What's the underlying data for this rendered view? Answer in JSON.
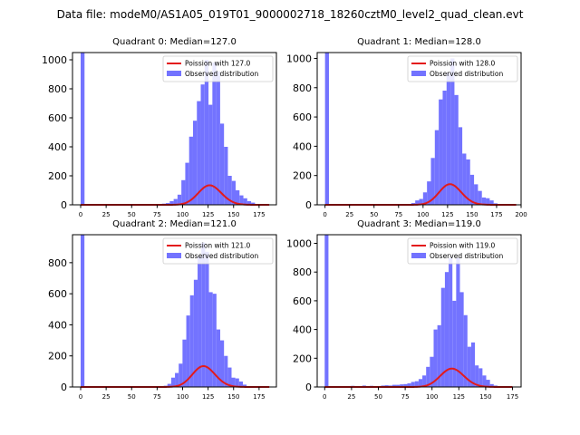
{
  "figure": {
    "suptitle": "Data file: modeM0/AS1A05_019T01_9000002718_18260cztM0_level2_quad_clean.evt"
  },
  "colors": {
    "hist_fill": "#7373ff",
    "fit_line": "#e31a1c",
    "axes": "#000000",
    "background": "#ffffff"
  },
  "chart_data": [
    {
      "type": "bar",
      "title": "Quadrant 0: Median=127.0",
      "median": 127.0,
      "xlim": [
        -8,
        192
      ],
      "ylim": [
        0,
        1050
      ],
      "xticks": [
        0,
        25,
        50,
        75,
        100,
        125,
        150,
        175
      ],
      "yticks": [
        0,
        200,
        400,
        600,
        800,
        1000
      ],
      "legend": {
        "position": "top-right",
        "entries": [
          "Poission with 127.0",
          "Observed distribution"
        ]
      },
      "zero_bin": {
        "x": [
          0,
          3.8
        ],
        "count": 1050
      },
      "bin_width": 3.8,
      "bins": [
        {
          "x": 76,
          "count": 5
        },
        {
          "x": 79.8,
          "count": 8
        },
        {
          "x": 83.6,
          "count": 12
        },
        {
          "x": 87.4,
          "count": 25
        },
        {
          "x": 91.2,
          "count": 40
        },
        {
          "x": 95,
          "count": 70
        },
        {
          "x": 98.8,
          "count": 170
        },
        {
          "x": 102.6,
          "count": 290
        },
        {
          "x": 106.4,
          "count": 470
        },
        {
          "x": 110.2,
          "count": 580
        },
        {
          "x": 114,
          "count": 715
        },
        {
          "x": 117.8,
          "count": 830
        },
        {
          "x": 121.6,
          "count": 1000
        },
        {
          "x": 125.4,
          "count": 690
        },
        {
          "x": 129.2,
          "count": 980
        },
        {
          "x": 133,
          "count": 920
        },
        {
          "x": 136.8,
          "count": 560
        },
        {
          "x": 140.6,
          "count": 400
        },
        {
          "x": 144.4,
          "count": 200
        },
        {
          "x": 148.2,
          "count": 165
        },
        {
          "x": 152,
          "count": 100
        },
        {
          "x": 155.8,
          "count": 65
        },
        {
          "x": 159.6,
          "count": 45
        },
        {
          "x": 163.4,
          "count": 25
        },
        {
          "x": 167.2,
          "count": 15
        },
        {
          "x": 171,
          "count": 5
        }
      ],
      "fit": {
        "label": "Poission with 127.0",
        "mean": 127.0,
        "scale": 3.8,
        "x_range": [
          0,
          185
        ]
      }
    },
    {
      "type": "bar",
      "title": "Quadrant 1: Median=128.0",
      "median": 128.0,
      "xlim": [
        -8,
        200
      ],
      "ylim": [
        0,
        1040
      ],
      "xticks": [
        0,
        25,
        50,
        75,
        100,
        125,
        150,
        175,
        200
      ],
      "yticks": [
        0,
        200,
        400,
        600,
        800,
        1000
      ],
      "legend": {
        "position": "top-right",
        "entries": [
          "Poission with 128.0",
          "Observed distribution"
        ]
      },
      "zero_bin": {
        "x": [
          0,
          4
        ],
        "count": 1040
      },
      "bin_width": 4,
      "bins": [
        {
          "x": 88,
          "count": 12
        },
        {
          "x": 92,
          "count": 30
        },
        {
          "x": 96,
          "count": 40
        },
        {
          "x": 100,
          "count": 85
        },
        {
          "x": 104,
          "count": 160
        },
        {
          "x": 108,
          "count": 320
        },
        {
          "x": 112,
          "count": 510
        },
        {
          "x": 116,
          "count": 720
        },
        {
          "x": 120,
          "count": 780
        },
        {
          "x": 124,
          "count": 900
        },
        {
          "x": 128,
          "count": 1000
        },
        {
          "x": 132,
          "count": 750
        },
        {
          "x": 136,
          "count": 530
        },
        {
          "x": 140,
          "count": 350
        },
        {
          "x": 144,
          "count": 310
        },
        {
          "x": 148,
          "count": 205
        },
        {
          "x": 152,
          "count": 140
        },
        {
          "x": 156,
          "count": 95
        },
        {
          "x": 160,
          "count": 50
        },
        {
          "x": 164,
          "count": 45
        },
        {
          "x": 168,
          "count": 30
        },
        {
          "x": 172,
          "count": 10
        }
      ],
      "fit": {
        "label": "Poission with 128.0",
        "mean": 128.0,
        "scale": 4.0,
        "x_range": [
          0,
          195
        ]
      }
    },
    {
      "type": "bar",
      "title": "Quadrant 2: Median=121.0",
      "median": 121.0,
      "xlim": [
        -8,
        192
      ],
      "ylim": [
        0,
        980
      ],
      "xticks": [
        0,
        25,
        50,
        75,
        100,
        125,
        150,
        175
      ],
      "yticks": [
        0,
        200,
        400,
        600,
        800
      ],
      "legend": {
        "position": "top-right",
        "entries": [
          "Poission with 121.0",
          "Observed distribution"
        ]
      },
      "zero_bin": {
        "x": [
          0,
          3.7
        ],
        "count": 980
      },
      "bin_width": 3.7,
      "bins": [
        {
          "x": 77.7,
          "count": 5
        },
        {
          "x": 81.4,
          "count": 8
        },
        {
          "x": 85.1,
          "count": 20
        },
        {
          "x": 88.8,
          "count": 60
        },
        {
          "x": 92.5,
          "count": 90
        },
        {
          "x": 96.2,
          "count": 150
        },
        {
          "x": 99.9,
          "count": 305
        },
        {
          "x": 103.6,
          "count": 460
        },
        {
          "x": 107.3,
          "count": 590
        },
        {
          "x": 111,
          "count": 690
        },
        {
          "x": 114.7,
          "count": 840
        },
        {
          "x": 118.4,
          "count": 930
        },
        {
          "x": 122.1,
          "count": 870
        },
        {
          "x": 125.8,
          "count": 610
        },
        {
          "x": 129.5,
          "count": 600
        },
        {
          "x": 133.2,
          "count": 370
        },
        {
          "x": 136.9,
          "count": 300
        },
        {
          "x": 140.6,
          "count": 200
        },
        {
          "x": 144.3,
          "count": 125
        },
        {
          "x": 148,
          "count": 60
        },
        {
          "x": 151.7,
          "count": 55
        },
        {
          "x": 155.4,
          "count": 35
        },
        {
          "x": 159.1,
          "count": 15
        },
        {
          "x": 162.8,
          "count": 5
        }
      ],
      "fit": {
        "label": "Poission with 121.0",
        "mean": 121.0,
        "scale": 3.7,
        "x_range": [
          0,
          185
        ]
      }
    },
    {
      "type": "bar",
      "title": "Quadrant 3: Median=119.0",
      "median": 119.0,
      "xlim": [
        -7,
        183
      ],
      "ylim": [
        0,
        1060
      ],
      "xticks": [
        0,
        25,
        50,
        75,
        100,
        125,
        150,
        175
      ],
      "yticks": [
        0,
        200,
        400,
        600,
        800,
        1000
      ],
      "legend": {
        "position": "top-right",
        "entries": [
          "Poission with 119.0",
          "Observed distribution"
        ]
      },
      "zero_bin": {
        "x": [
          0,
          3.5
        ],
        "count": 1060
      },
      "bin_width": 3.5,
      "bins": [
        {
          "x": 17.5,
          "count": 5
        },
        {
          "x": 24.5,
          "count": 8
        },
        {
          "x": 28,
          "count": 5
        },
        {
          "x": 35,
          "count": 10
        },
        {
          "x": 42,
          "count": 8
        },
        {
          "x": 52.5,
          "count": 10
        },
        {
          "x": 56,
          "count": 12
        },
        {
          "x": 59.5,
          "count": 10
        },
        {
          "x": 63,
          "count": 15
        },
        {
          "x": 66.5,
          "count": 15
        },
        {
          "x": 70,
          "count": 18
        },
        {
          "x": 73.5,
          "count": 20
        },
        {
          "x": 77,
          "count": 25
        },
        {
          "x": 80.5,
          "count": 35
        },
        {
          "x": 84,
          "count": 40
        },
        {
          "x": 87.5,
          "count": 55
        },
        {
          "x": 91,
          "count": 80
        },
        {
          "x": 94.5,
          "count": 140
        },
        {
          "x": 98,
          "count": 210
        },
        {
          "x": 101.5,
          "count": 400
        },
        {
          "x": 105,
          "count": 430
        },
        {
          "x": 108.5,
          "count": 690
        },
        {
          "x": 112,
          "count": 800
        },
        {
          "x": 115.5,
          "count": 900
        },
        {
          "x": 119,
          "count": 600
        },
        {
          "x": 122.5,
          "count": 900
        },
        {
          "x": 126,
          "count": 660
        },
        {
          "x": 129.5,
          "count": 500
        },
        {
          "x": 133,
          "count": 280
        },
        {
          "x": 136.5,
          "count": 310
        },
        {
          "x": 140,
          "count": 150
        },
        {
          "x": 143.5,
          "count": 130
        },
        {
          "x": 147,
          "count": 80
        },
        {
          "x": 150.5,
          "count": 50
        },
        {
          "x": 154,
          "count": 20
        },
        {
          "x": 157.5,
          "count": 10
        }
      ],
      "fit": {
        "label": "Poission with 119.0",
        "mean": 119.0,
        "scale": 3.5,
        "x_range": [
          0,
          175
        ]
      }
    }
  ]
}
